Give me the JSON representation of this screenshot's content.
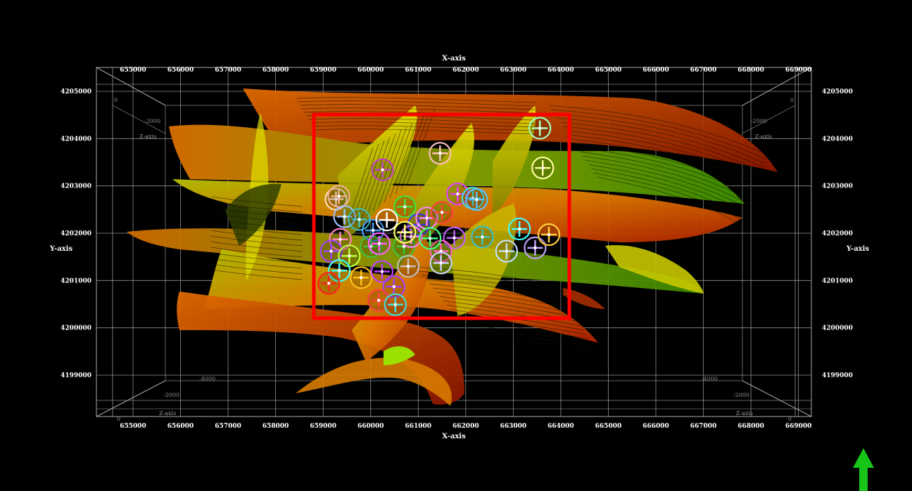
{
  "axes": {
    "x_title": "X-axis",
    "y_title": "Y-axis",
    "z_title": "Z-axis",
    "x_ticks": [
      "655000",
      "656000",
      "657000",
      "658000",
      "659000",
      "660000",
      "661000",
      "662000",
      "663000",
      "664000",
      "665000",
      "666000",
      "667000",
      "668000",
      "669000"
    ],
    "y_ticks": [
      "4205000",
      "4204000",
      "4203000",
      "4202000",
      "4201000",
      "4200000",
      "4199000"
    ],
    "z_ticks_top": [
      "0",
      "-2000"
    ],
    "z_ticks_bottom": [
      "-4000",
      "-2000",
      "0"
    ]
  },
  "highlight_box": {
    "color": "#ff0000"
  },
  "north_arrow": {
    "color": "#18c418",
    "icon": "arrow-up-icon"
  },
  "wells": [
    {
      "x": 659270,
      "y": 4202720,
      "color": "#ffe0c0"
    },
    {
      "x": 659330,
      "y": 4202780,
      "color": "#f0b090"
    },
    {
      "x": 660250,
      "y": 4203340,
      "color": "#c040c0"
    },
    {
      "x": 661460,
      "y": 4203690,
      "color": "#ffc0c0"
    },
    {
      "x": 663560,
      "y": 4204220,
      "color": "#a0ffc0"
    },
    {
      "x": 663620,
      "y": 4203380,
      "color": "#ffffa0"
    },
    {
      "x": 659450,
      "y": 4202350,
      "color": "#a0c0ff"
    },
    {
      "x": 659760,
      "y": 4202290,
      "color": "#40c0c0"
    },
    {
      "x": 660050,
      "y": 4202060,
      "color": "#40a0ff"
    },
    {
      "x": 660340,
      "y": 4202280,
      "color": "#ffffff"
    },
    {
      "x": 660720,
      "y": 4202560,
      "color": "#40e040"
    },
    {
      "x": 661010,
      "y": 4202180,
      "color": "#4040ff"
    },
    {
      "x": 661180,
      "y": 4202320,
      "color": "#ff80ff"
    },
    {
      "x": 661500,
      "y": 4202440,
      "color": "#ff4040"
    },
    {
      "x": 661830,
      "y": 4202830,
      "color": "#e040ff"
    },
    {
      "x": 662150,
      "y": 4202740,
      "color": "#40e0e0"
    },
    {
      "x": 662230,
      "y": 4202710,
      "color": "#60c0ff"
    },
    {
      "x": 662350,
      "y": 4201920,
      "color": "#40c0c0"
    },
    {
      "x": 661760,
      "y": 4201900,
      "color": "#c060ff"
    },
    {
      "x": 662860,
      "y": 4201620,
      "color": "#c0e0ff"
    },
    {
      "x": 663130,
      "y": 4202090,
      "color": "#40ffff"
    },
    {
      "x": 663460,
      "y": 4201690,
      "color": "#c0a0ff"
    },
    {
      "x": 663750,
      "y": 4201970,
      "color": "#ffd040"
    },
    {
      "x": 659360,
      "y": 4201870,
      "color": "#ff80c0"
    },
    {
      "x": 659170,
      "y": 4201620,
      "color": "#a040ff"
    },
    {
      "x": 659550,
      "y": 4201520,
      "color": "#c0ff40"
    },
    {
      "x": 659340,
      "y": 4201210,
      "color": "#40ffff"
    },
    {
      "x": 659120,
      "y": 4200940,
      "color": "#ff2020"
    },
    {
      "x": 659800,
      "y": 4201060,
      "color": "#ffc020"
    },
    {
      "x": 660010,
      "y": 4201720,
      "color": "#40c040"
    },
    {
      "x": 660180,
      "y": 4201780,
      "color": "#ff60ff"
    },
    {
      "x": 660700,
      "y": 4201720,
      "color": "#40c040"
    },
    {
      "x": 660790,
      "y": 4201300,
      "color": "#c0c0c0"
    },
    {
      "x": 660240,
      "y": 4201190,
      "color": "#c040ff"
    },
    {
      "x": 660490,
      "y": 4200870,
      "color": "#a040ff"
    },
    {
      "x": 660170,
      "y": 4200580,
      "color": "#ff4040"
    },
    {
      "x": 660520,
      "y": 4200490,
      "color": "#40e0e0"
    },
    {
      "x": 660850,
      "y": 4201930,
      "color": "#ff80ff"
    },
    {
      "x": 661480,
      "y": 4201620,
      "color": "#ff60c0"
    },
    {
      "x": 661480,
      "y": 4201370,
      "color": "#d0d0ff"
    },
    {
      "x": 661250,
      "y": 4201890,
      "color": "#40ff80"
    },
    {
      "x": 660720,
      "y": 4202020,
      "color": "#ffff60"
    }
  ]
}
